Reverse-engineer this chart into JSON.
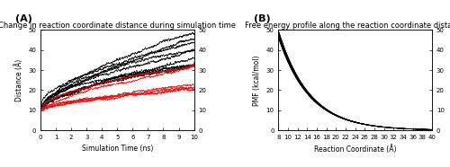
{
  "panel_A": {
    "title": "Change in reaction coordinate distance during simulation time",
    "xlabel": "Simulation Time (ns)",
    "ylabel": "Distance (Å)",
    "xlim": [
      0,
      10
    ],
    "ylim": [
      0,
      50
    ],
    "xticks": [
      0,
      1,
      2,
      3,
      4,
      5,
      6,
      7,
      8,
      9,
      10
    ],
    "yticks": [
      0,
      10,
      20,
      30,
      40,
      50
    ],
    "black_lines_count": 10,
    "red_lines_count": 6
  },
  "panel_B": {
    "title": "Free energy profile along the reaction coordinate distance",
    "xlabel": "Reaction Coordinate (Å)",
    "ylabel": "PMF (kcal/mol)",
    "xlim": [
      8,
      40
    ],
    "ylim": [
      0,
      50
    ],
    "xticks": [
      8,
      10,
      12,
      14,
      16,
      18,
      20,
      22,
      24,
      26,
      28,
      30,
      32,
      34,
      36,
      38,
      40
    ],
    "yticks": [
      0,
      10,
      20,
      30,
      40,
      50
    ],
    "num_curves": 60
  },
  "label_A": "(A)",
  "label_B": "(B)",
  "label_fontsize": 8,
  "title_fontsize": 6.0,
  "tick_fontsize": 5.0,
  "axis_label_fontsize": 5.5
}
